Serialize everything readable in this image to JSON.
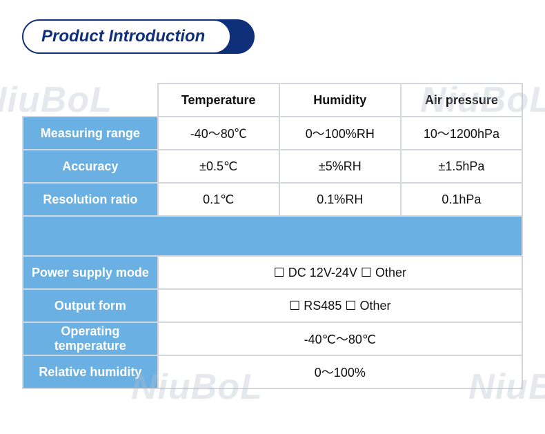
{
  "colors": {
    "accent_deep": "#0f2f7a",
    "accent_light": "#6bb0e3",
    "border": "#d4d8de",
    "watermark": "rgba(180,190,200,0.35)"
  },
  "title": "Product Introduction",
  "watermark_text": "NiuBoL",
  "table": {
    "columns": [
      "Temperature",
      "Humidity",
      "Air pressure"
    ],
    "rows": [
      {
        "label": "Measuring range",
        "cells": [
          "-40～80℃",
          "0～100%RH",
          "10～1200hPa"
        ]
      },
      {
        "label": "Accuracy",
        "cells": [
          "±0.5℃",
          "±5%RH",
          "±1.5hPa"
        ]
      },
      {
        "label": "Resolution ratio",
        "cells": [
          "0.1℃",
          "0.1%RH",
          "0.1hPa"
        ]
      }
    ],
    "kvrows": [
      {
        "label": "Power supply mode",
        "value": "☐ DC 12V-24V   ☐ Other"
      },
      {
        "label": "Output form",
        "value": "☐ RS485   ☐ Other"
      },
      {
        "label": "Operating temperature",
        "value": "-40℃～80℃"
      },
      {
        "label": "Relative humidity",
        "value": "0～100%"
      }
    ]
  }
}
